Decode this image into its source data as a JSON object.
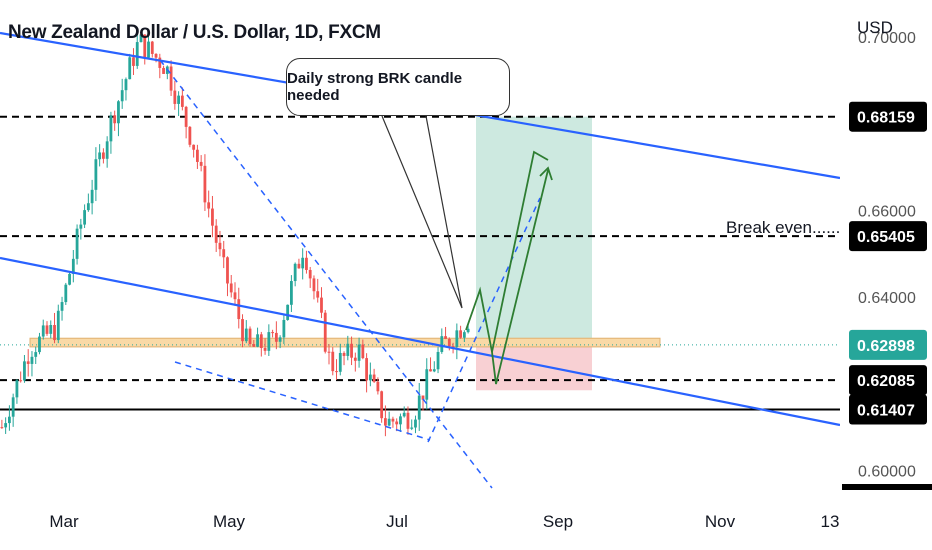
{
  "title": "New Zealand Dollar / U.S. Dollar, 1D, FXCM",
  "annotation_callout": "Daily strong BRK candle needed",
  "annotation_note": "Break even......",
  "currency": "USD",
  "colors": {
    "up": "#26a69a",
    "down": "#ef5350",
    "trend_line": "#2962ff",
    "projection": "#2e7d32",
    "target_zone": "#cde9e0",
    "stop_zone": "#f8d0d3",
    "support_zone": "#f9d9a6",
    "current_price": "#26a69a"
  },
  "chart_data": {
    "type": "candlestick",
    "ylim": [
      0.5955,
      0.7085
    ],
    "x_ticks": [
      "Mar",
      "May",
      "Jul",
      "Sep",
      "Nov",
      "13"
    ],
    "y_ticks": [
      0.7,
      0.66,
      0.64,
      0.6
    ],
    "y_tick_labels": [
      "0.70000",
      "0.66000",
      "0.64000",
      "0.60000"
    ],
    "price_levels": [
      {
        "label": "0.68159",
        "value": 0.68159,
        "style": "dashed"
      },
      {
        "label": "0.65405",
        "value": 0.65405,
        "style": "dashed"
      },
      {
        "label": "0.62898",
        "value": 0.62898,
        "style": "current"
      },
      {
        "label": "0.62085",
        "value": 0.62085,
        "style": "dashed"
      },
      {
        "label": "0.61407",
        "value": 0.61407,
        "style": "solid"
      }
    ],
    "trend_anchors": [
      0.61,
      0.628,
      0.633,
      0.66,
      0.681,
      0.699,
      0.693,
      0.675,
      0.648,
      0.628,
      0.63,
      0.652,
      0.624,
      0.628,
      0.611,
      0.613,
      0.628,
      0.635
    ]
  }
}
